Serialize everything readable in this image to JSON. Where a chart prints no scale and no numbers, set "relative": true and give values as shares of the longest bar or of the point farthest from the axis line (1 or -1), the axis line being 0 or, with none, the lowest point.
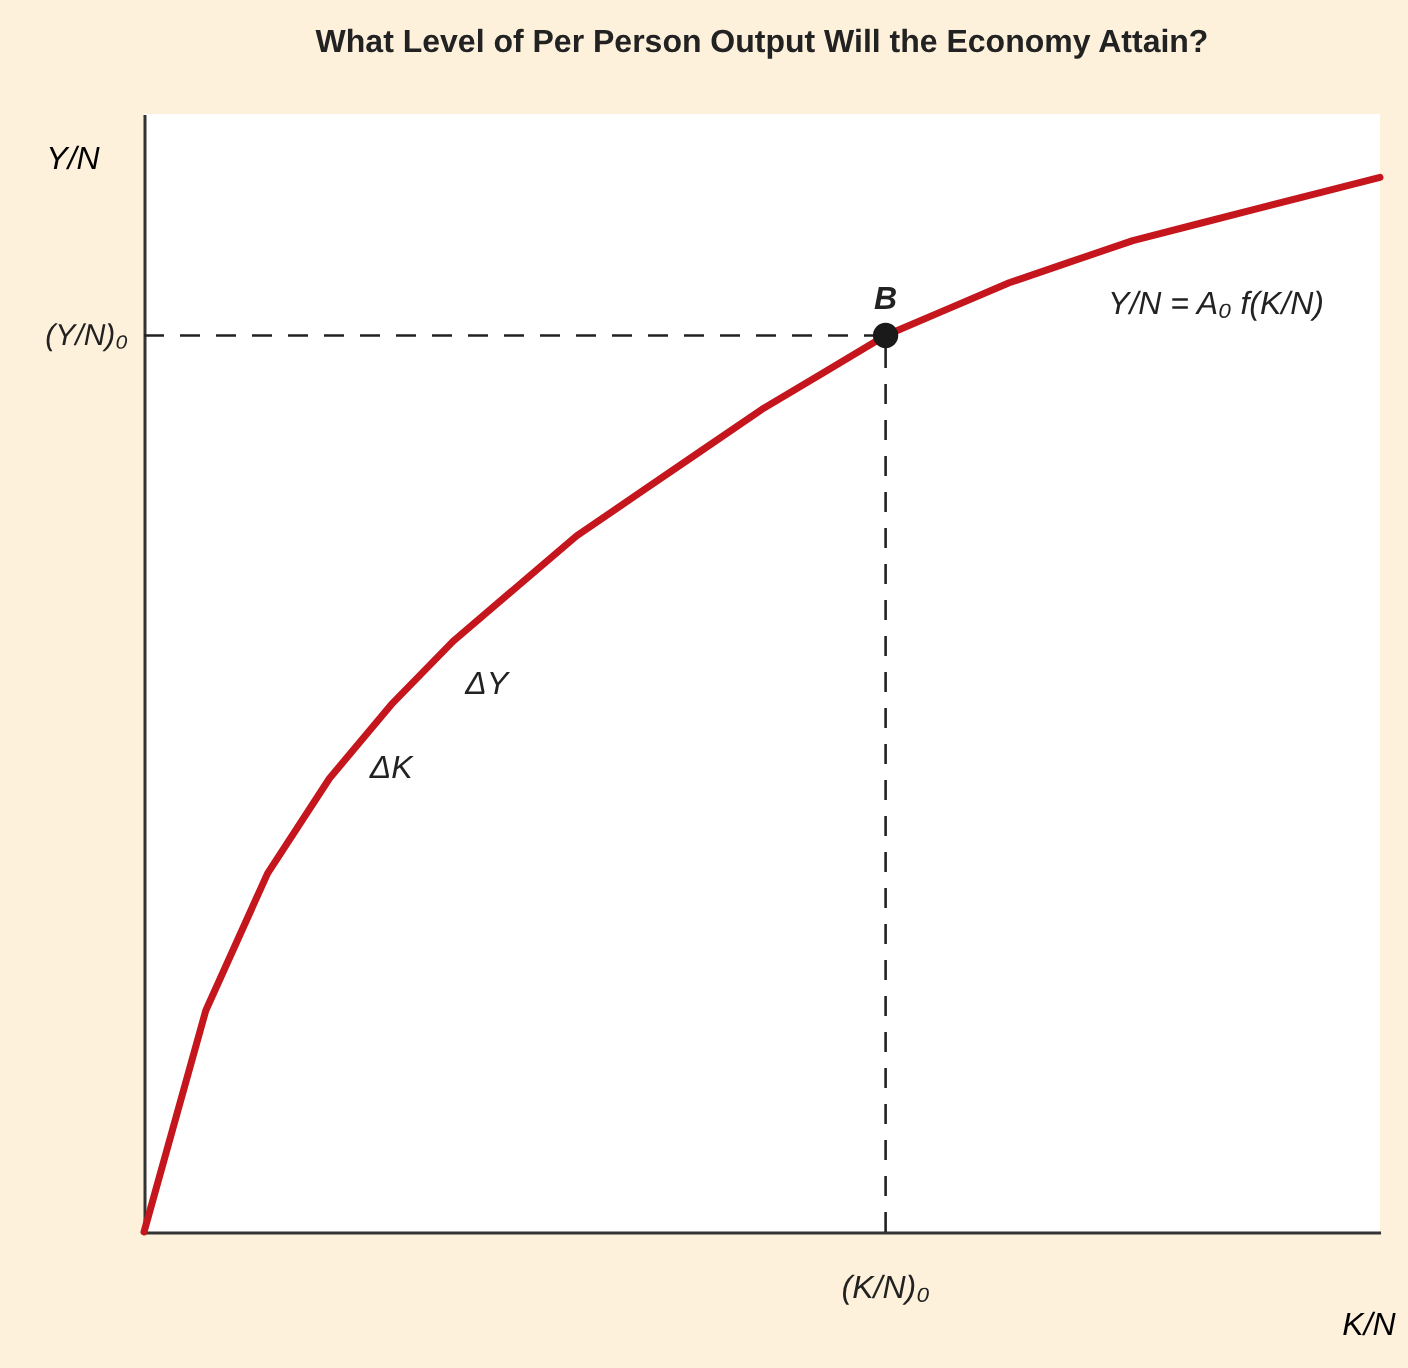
{
  "chart_data": {
    "type": "line",
    "relative": true,
    "title": "What Level of Per Person Output Will the Economy Attain?",
    "xlabel": "K/N",
    "ylabel": "Y/N",
    "categories": [
      null,
      null,
      null,
      null,
      null,
      null,
      null,
      null,
      null,
      null,
      null,
      null,
      null,
      null,
      null,
      null,
      null,
      null,
      null,
      null,
      null
    ],
    "series": [
      {
        "color": "#c4161c",
        "values": [
          0,
          0.21,
          0.34,
          0.43,
          0.5,
          0.56,
          0.61,
          0.66,
          0.7,
          0.74,
          0.78,
          0.815,
          0.85,
          0.875,
          0.9,
          0.92,
          0.94,
          0.955,
          0.97,
          0.985,
          1
        ]
      }
    ],
    "ref_lines": [
      {
        "axis": "y",
        "value": 0.85,
        "label": "(Y/N)₀",
        "line_style": "dashed"
      },
      {
        "axis": "x",
        "label": "(K/N)₀",
        "line_style": "dashed"
      }
    ],
    "annotations": [
      {
        "text": "B",
        "y": 0.85
      },
      "Y/N = A₀ f(K/N)",
      "ΔY",
      "ΔK"
    ],
    "grid": false
  }
}
